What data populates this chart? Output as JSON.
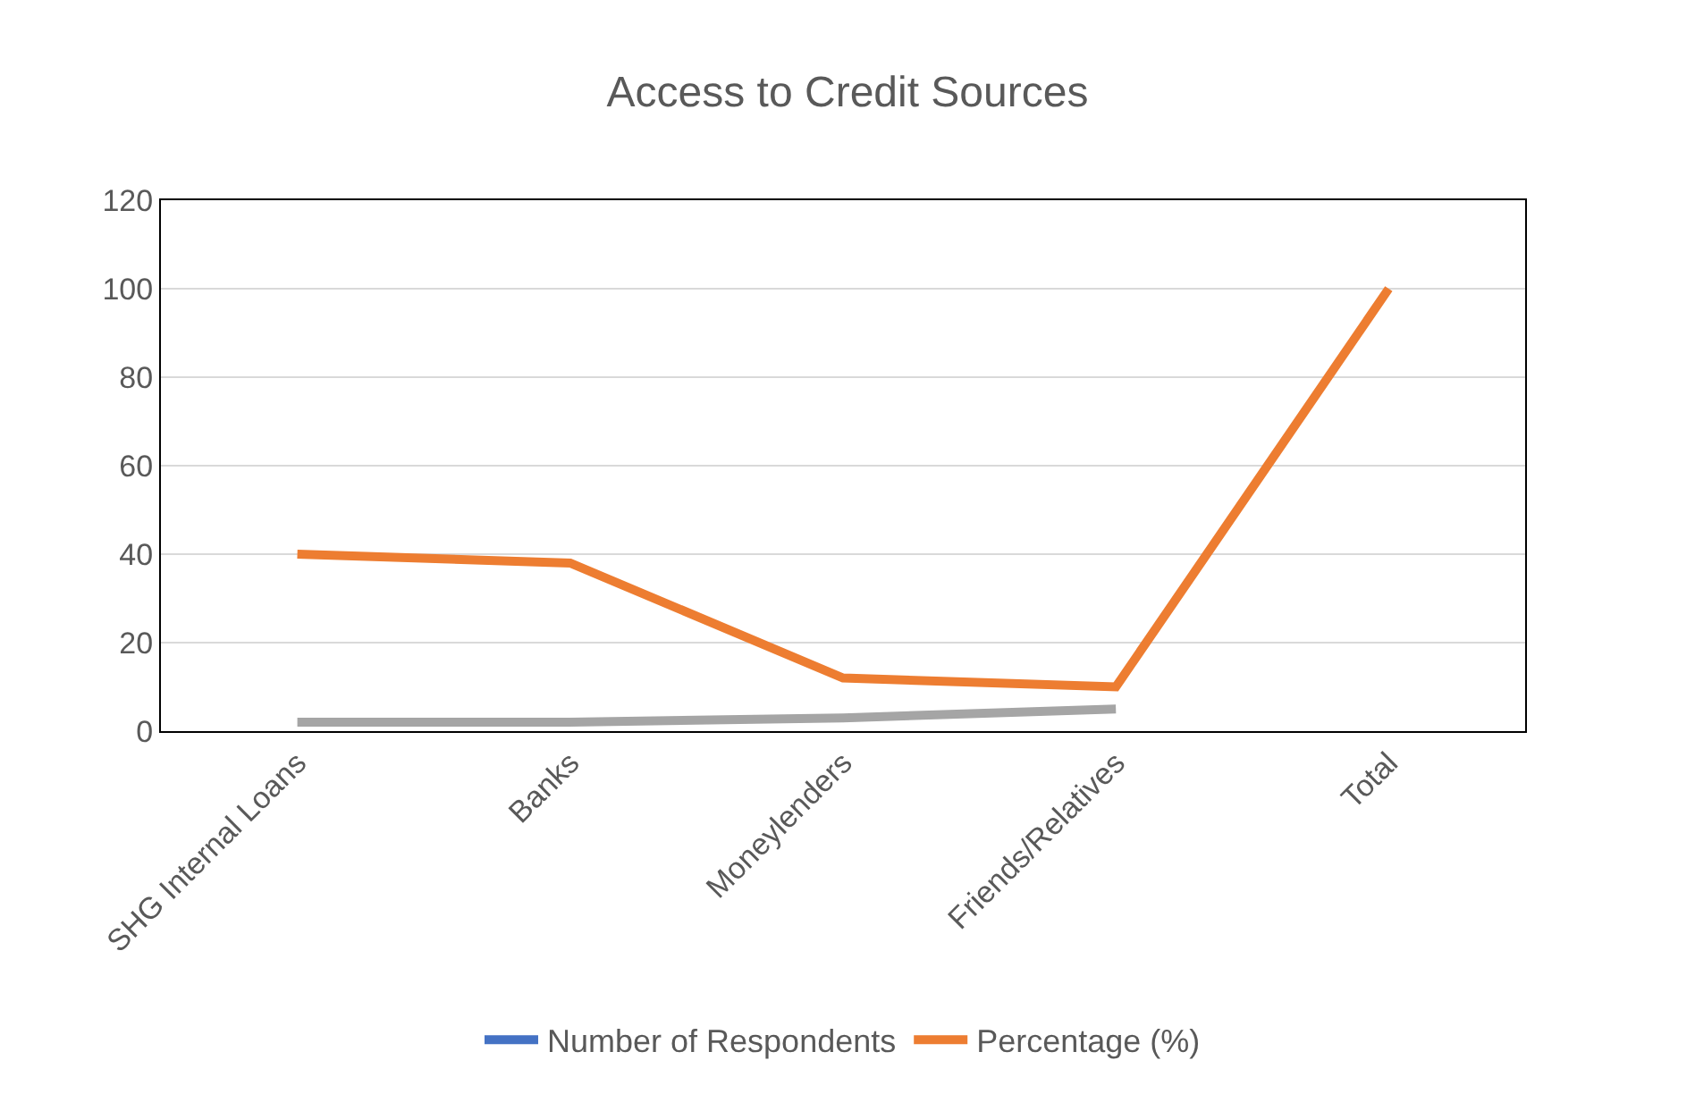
{
  "chart_data": {
    "type": "line",
    "title": "Access to Credit Sources",
    "categories": [
      "SHG Internal Loans",
      "Banks",
      "Moneylenders",
      "Friends/Relatives",
      "Total"
    ],
    "series": [
      {
        "name": "Number of Respondents",
        "color": "#4472c4",
        "values": [
          null,
          null,
          null,
          null,
          null
        ]
      },
      {
        "name": "Percentage (%)",
        "color": "#ed7d31",
        "values": [
          40,
          38,
          12,
          10,
          100
        ]
      },
      {
        "color": "#a5a5a5",
        "values": [
          2,
          2,
          3,
          5,
          null
        ]
      }
    ],
    "ylim": [
      0,
      120
    ],
    "yticks": [
      0,
      20,
      40,
      60,
      80,
      100,
      120
    ],
    "grid": "y",
    "legend": "bottom",
    "marker": "none",
    "line_style": "solid"
  }
}
